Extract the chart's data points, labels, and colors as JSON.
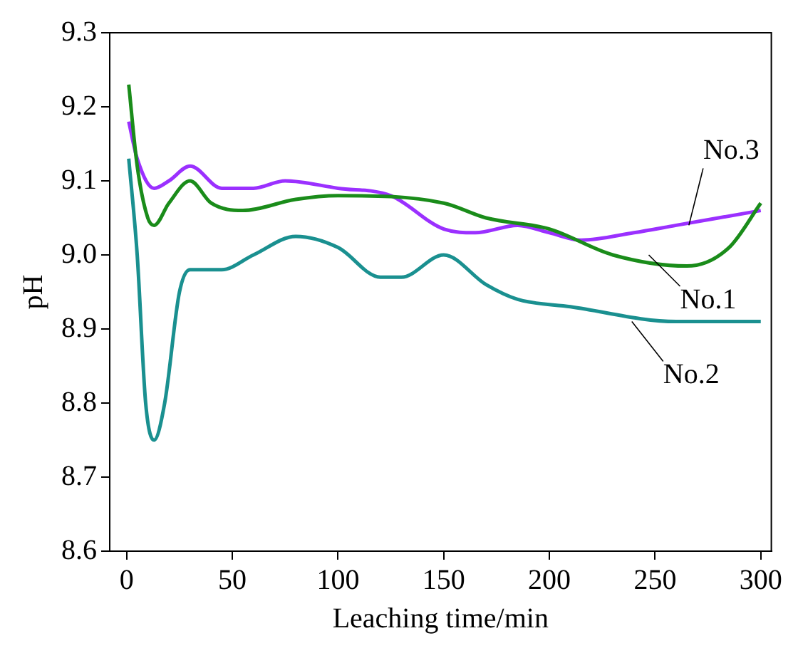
{
  "chart_data": {
    "type": "line",
    "xlabel": "Leaching time/min",
    "ylabel": "pH",
    "xlim": [
      -8,
      305
    ],
    "xticks": [
      0,
      50,
      100,
      150,
      200,
      250,
      300
    ],
    "ylim": [
      8.6,
      9.3
    ],
    "yticks": [
      {
        "value": 8.6,
        "label": "8.6"
      },
      {
        "value": 8.7,
        "label": "8.7"
      },
      {
        "value": 8.8,
        "label": "8.8"
      },
      {
        "value": 8.9,
        "label": "8.9"
      },
      {
        "value": 9.0,
        "label": "9.0"
      },
      {
        "value": 9.1,
        "label": "9.1"
      },
      {
        "value": 9.2,
        "label": "9.2"
      },
      {
        "value": 9.3,
        "label": "9.3"
      }
    ],
    "grid": false,
    "legend": false,
    "marker": "none",
    "line_style": "solid",
    "series": [
      {
        "color": "#1a8c1a",
        "x": [
          1,
          5,
          10,
          13,
          20,
          30,
          40,
          55,
          80,
          100,
          150,
          170,
          200,
          230,
          265,
          285,
          300
        ],
        "values": [
          9.23,
          9.12,
          9.05,
          9.04,
          9.07,
          9.1,
          9.07,
          9.06,
          9.075,
          9.08,
          9.07,
          9.05,
          9.035,
          9.0,
          8.985,
          9.01,
          9.07
        ]
      },
      {
        "color": "#1a9090",
        "x": [
          1,
          5,
          9,
          13,
          18,
          25,
          30,
          45,
          60,
          80,
          100,
          120,
          130,
          150,
          170,
          185,
          210,
          260,
          300
        ],
        "values": [
          9.13,
          9.0,
          8.8,
          8.75,
          8.8,
          8.95,
          8.98,
          8.98,
          9.0,
          9.025,
          9.01,
          8.97,
          8.97,
          9.0,
          8.96,
          8.94,
          8.93,
          8.91,
          8.91
        ]
      },
      {
        "color": "#9b30ff",
        "x": [
          1,
          5,
          13,
          20,
          30,
          45,
          60,
          75,
          100,
          125,
          150,
          165,
          185,
          200,
          215,
          240,
          260,
          300
        ],
        "values": [
          9.18,
          9.13,
          9.09,
          9.1,
          9.12,
          9.09,
          9.09,
          9.1,
          9.09,
          9.08,
          9.035,
          9.03,
          9.04,
          9.03,
          9.02,
          9.03,
          9.04,
          9.06
        ]
      }
    ],
    "annotations": [
      {
        "text": "No.3",
        "x": 266,
        "y": 9.04
      },
      {
        "text": "No.1",
        "x": 247,
        "y": 9.0
      },
      {
        "text": "No.2",
        "x": 239,
        "y": 8.91
      }
    ]
  }
}
